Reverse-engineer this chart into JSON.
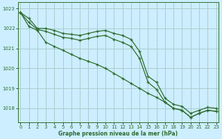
{
  "title": "Graphe pression niveau de la mer (hPa)",
  "background_color": "#cceeff",
  "grid_color": "#aacccc",
  "line_color": "#2d6b2d",
  "xlim": [
    -0.3,
    23.3
  ],
  "ylim": [
    1017.3,
    1023.3
  ],
  "yticks": [
    1018,
    1019,
    1020,
    1021,
    1022,
    1023
  ],
  "xticks": [
    0,
    1,
    2,
    3,
    4,
    5,
    6,
    7,
    8,
    9,
    10,
    11,
    12,
    13,
    14,
    15,
    16,
    17,
    18,
    19,
    20,
    21,
    22,
    23
  ],
  "series": [
    [
      1022.8,
      1022.5,
      1022.0,
      1022.0,
      1021.9,
      1021.75,
      1021.7,
      1021.65,
      1021.75,
      1021.85,
      1021.9,
      1021.75,
      1021.65,
      1021.45,
      1020.85,
      1019.6,
      1019.3,
      1018.5,
      1018.2,
      1018.1,
      1017.75,
      1017.9,
      1018.05,
      1018.0
    ],
    [
      1022.8,
      1022.3,
      1021.95,
      1021.85,
      1021.7,
      1021.55,
      1021.5,
      1021.4,
      1021.5,
      1021.6,
      1021.65,
      1021.45,
      1021.3,
      1021.1,
      1020.5,
      1019.3,
      1018.95,
      1018.3,
      1018.0,
      1017.9,
      1017.55,
      1017.75,
      1017.9,
      1017.85
    ],
    [
      1022.8,
      1022.1,
      1021.9,
      1021.3,
      1021.1,
      1020.9,
      1020.7,
      1020.5,
      1020.35,
      1020.2,
      1020.0,
      1019.75,
      1019.5,
      1019.25,
      1019.0,
      1018.75,
      1018.55,
      1018.3,
      1018.0,
      1017.9,
      1017.55,
      1017.75,
      1017.9,
      1017.85
    ]
  ]
}
